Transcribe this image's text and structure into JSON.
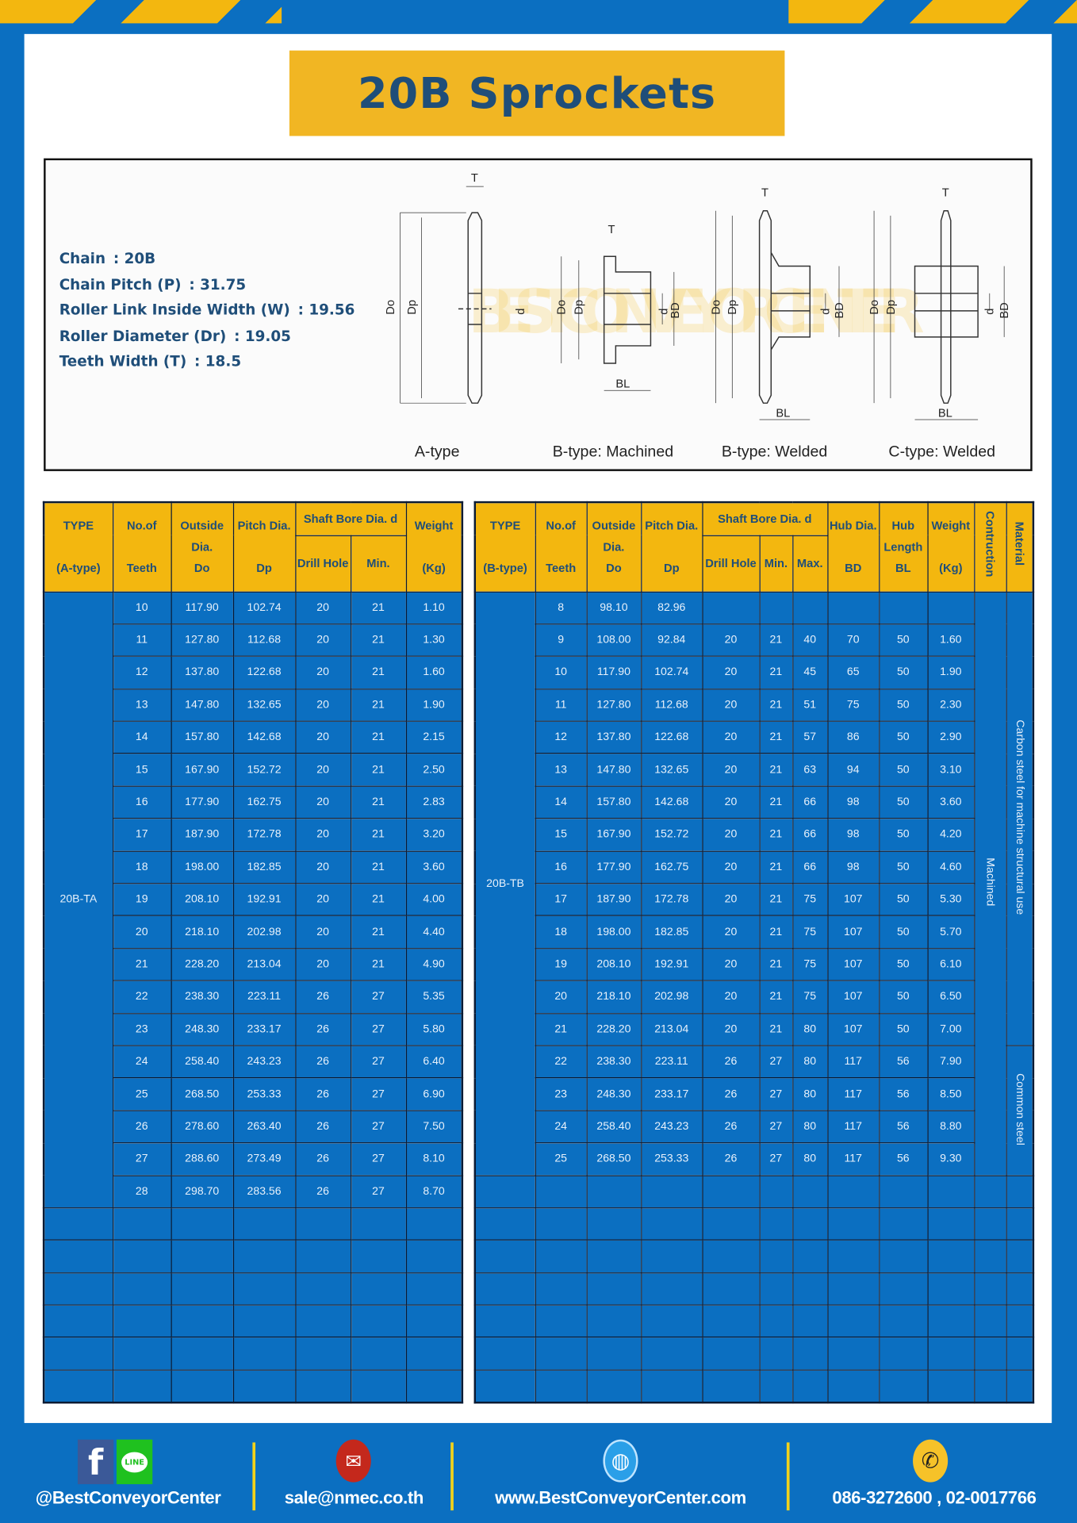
{
  "title": "20B Sprockets",
  "specs": [
    {
      "label": "Chain",
      "value": ": 20B"
    },
    {
      "label": "Chain Pitch (P)",
      "value": ": 31.75"
    },
    {
      "label": "Roller Link Inside Width (W)",
      "value": ": 19.56"
    },
    {
      "label": "Roller Diameter (Dr)",
      "value": ": 19.05"
    },
    {
      "label": "Teeth Width (T)",
      "value": ": 18.5"
    }
  ],
  "diagram": {
    "watermark": "BEST CONVEYOR CENTER",
    "labels": [
      "A-type",
      "B-type: Machined",
      "B-type: Welded",
      "C-type: Welded"
    ],
    "dims": {
      "T": "T",
      "Do": "Do",
      "Dp": "Dp",
      "d": "d",
      "BD": "BD",
      "BL": "BL"
    }
  },
  "table_a": {
    "headers": {
      "type": "TYPE",
      "type_sub": "(A-type)",
      "teeth": "No.of",
      "teeth_sub": "Teeth",
      "od": "Outside",
      "od2": "Dia.",
      "od3": "Do",
      "pd": "Pitch Dia.",
      "pd2": "Dp",
      "bore": "Shaft Bore Dia. d",
      "drill": "Drill Hole",
      "min": "Min.",
      "weight": "Weight",
      "weight_sub": "(Kg)"
    },
    "type_value": "20B-TA",
    "rows": [
      [
        "10",
        "117.90",
        "102.74",
        "20",
        "21",
        "1.10"
      ],
      [
        "11",
        "127.80",
        "112.68",
        "20",
        "21",
        "1.30"
      ],
      [
        "12",
        "137.80",
        "122.68",
        "20",
        "21",
        "1.60"
      ],
      [
        "13",
        "147.80",
        "132.65",
        "20",
        "21",
        "1.90"
      ],
      [
        "14",
        "157.80",
        "142.68",
        "20",
        "21",
        "2.15"
      ],
      [
        "15",
        "167.90",
        "152.72",
        "20",
        "21",
        "2.50"
      ],
      [
        "16",
        "177.90",
        "162.75",
        "20",
        "21",
        "2.83"
      ],
      [
        "17",
        "187.90",
        "172.78",
        "20",
        "21",
        "3.20"
      ],
      [
        "18",
        "198.00",
        "182.85",
        "20",
        "21",
        "3.60"
      ],
      [
        "19",
        "208.10",
        "192.91",
        "20",
        "21",
        "4.00"
      ],
      [
        "20",
        "218.10",
        "202.98",
        "20",
        "21",
        "4.40"
      ],
      [
        "21",
        "228.20",
        "213.04",
        "20",
        "21",
        "4.90"
      ],
      [
        "22",
        "238.30",
        "223.11",
        "26",
        "27",
        "5.35"
      ],
      [
        "23",
        "248.30",
        "233.17",
        "26",
        "27",
        "5.80"
      ],
      [
        "24",
        "258.40",
        "243.23",
        "26",
        "27",
        "6.40"
      ],
      [
        "25",
        "268.50",
        "253.33",
        "26",
        "27",
        "6.90"
      ],
      [
        "26",
        "278.60",
        "263.40",
        "26",
        "27",
        "7.50"
      ],
      [
        "27",
        "288.60",
        "273.49",
        "26",
        "27",
        "8.10"
      ],
      [
        "28",
        "298.70",
        "283.56",
        "26",
        "27",
        "8.70"
      ]
    ],
    "empty_rows": 6
  },
  "table_b": {
    "headers": {
      "type": "TYPE",
      "type_sub": "(B-type)",
      "teeth": "No.of",
      "teeth_sub": "Teeth",
      "od": "Outside",
      "od2": "Dia.",
      "od3": "Do",
      "pd": "Pitch Dia.",
      "pd2": "Dp",
      "bore": "Shaft Bore Dia. d",
      "drill": "Drill Hole",
      "min": "Min.",
      "max": "Max.",
      "hub": "Hub Dia.",
      "hub2": "BD",
      "hubl": "Hub",
      "hubl2": "Length",
      "hubl3": "BL",
      "weight": "Weight",
      "weight_sub": "(Kg)",
      "construction": "Contruction",
      "material": "Material"
    },
    "type_value": "20B-TB",
    "construction_value": "Machined",
    "material_values": [
      "Carbon steel for machine structural use",
      "Common steel"
    ],
    "rows": [
      [
        "8",
        "98.10",
        "82.96",
        "",
        "",
        "",
        "",
        "",
        ""
      ],
      [
        "9",
        "108.00",
        "92.84",
        "20",
        "21",
        "40",
        "70",
        "50",
        "1.60"
      ],
      [
        "10",
        "117.90",
        "102.74",
        "20",
        "21",
        "45",
        "65",
        "50",
        "1.90"
      ],
      [
        "11",
        "127.80",
        "112.68",
        "20",
        "21",
        "51",
        "75",
        "50",
        "2.30"
      ],
      [
        "12",
        "137.80",
        "122.68",
        "20",
        "21",
        "57",
        "86",
        "50",
        "2.90"
      ],
      [
        "13",
        "147.80",
        "132.65",
        "20",
        "21",
        "63",
        "94",
        "50",
        "3.10"
      ],
      [
        "14",
        "157.80",
        "142.68",
        "20",
        "21",
        "66",
        "98",
        "50",
        "3.60"
      ],
      [
        "15",
        "167.90",
        "152.72",
        "20",
        "21",
        "66",
        "98",
        "50",
        "4.20"
      ],
      [
        "16",
        "177.90",
        "162.75",
        "20",
        "21",
        "66",
        "98",
        "50",
        "4.60"
      ],
      [
        "17",
        "187.90",
        "172.78",
        "20",
        "21",
        "75",
        "107",
        "50",
        "5.30"
      ],
      [
        "18",
        "198.00",
        "182.85",
        "20",
        "21",
        "75",
        "107",
        "50",
        "5.70"
      ],
      [
        "19",
        "208.10",
        "192.91",
        "20",
        "21",
        "75",
        "107",
        "50",
        "6.10"
      ],
      [
        "20",
        "218.10",
        "202.98",
        "20",
        "21",
        "75",
        "107",
        "50",
        "6.50"
      ],
      [
        "21",
        "228.20",
        "213.04",
        "20",
        "21",
        "80",
        "107",
        "50",
        "7.00"
      ],
      [
        "22",
        "238.30",
        "223.11",
        "26",
        "27",
        "80",
        "117",
        "56",
        "7.90"
      ],
      [
        "23",
        "248.30",
        "233.17",
        "26",
        "27",
        "80",
        "117",
        "56",
        "8.50"
      ],
      [
        "24",
        "258.40",
        "243.23",
        "26",
        "27",
        "80",
        "117",
        "56",
        "8.80"
      ],
      [
        "25",
        "268.50",
        "253.33",
        "26",
        "27",
        "80",
        "117",
        "56",
        "9.30"
      ]
    ],
    "empty_rows": 7
  },
  "footer": {
    "social": "@BestConveyorCenter",
    "line_icon_text": "LINE",
    "email": "sale@nmec.co.th",
    "website": "www.BestConveyorCenter.com",
    "phone": "086-3272600 , 02-0017766"
  },
  "colors": {
    "brand_blue": "#0b6fc1",
    "accent_yellow": "#f3b70f",
    "heading_text": "#1f4e79"
  }
}
